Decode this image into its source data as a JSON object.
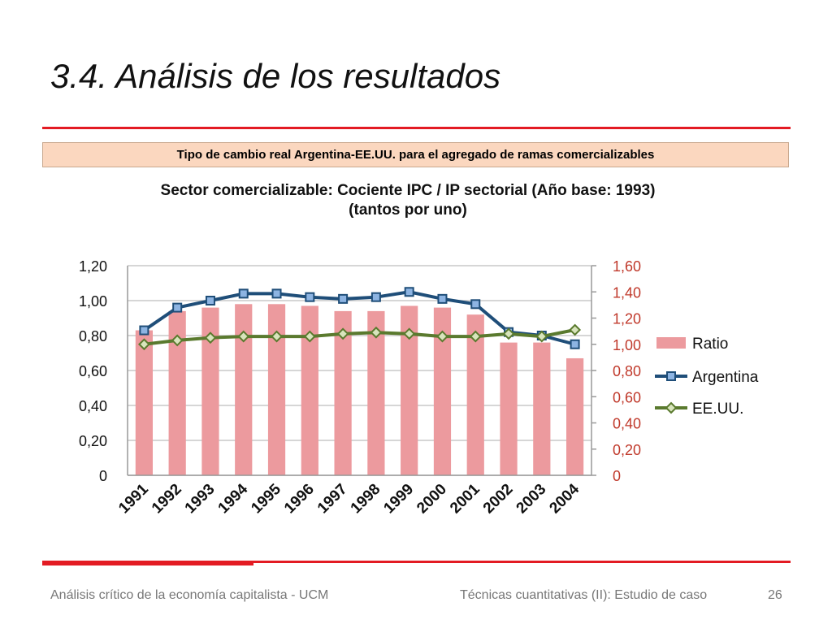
{
  "slide": {
    "title": "3.4.  Análisis de los resultados",
    "caption": "Tipo de cambio real Argentina-EE.UU. para el agregado de ramas comercializables",
    "footer_left": "Análisis crítico de la economía capitalista - UCM",
    "footer_center": "Técnicas cuantitativas (II): Estudio de caso",
    "page_number": "26",
    "accent_color": "#e31b23"
  },
  "chart_data": {
    "type": "bar",
    "title": "Sector comercializable: Cociente IPC / IP sectorial (Año base: 1993)",
    "subtitle": "(tantos por uno)",
    "categories": [
      "1991",
      "1992",
      "1993",
      "1994",
      "1995",
      "1996",
      "1997",
      "1998",
      "1999",
      "2000",
      "2001",
      "2002",
      "2003",
      "2004"
    ],
    "y_left": {
      "min": 0,
      "max": 1.2,
      "step": 0.2,
      "ticks": [
        "0",
        "0,20",
        "0,40",
        "0,60",
        "0,80",
        "1,00",
        "1,20"
      ]
    },
    "y_right": {
      "min": 0,
      "max": 1.6,
      "step": 0.2,
      "ticks": [
        "0",
        "0,20",
        "0,40",
        "0,60",
        "0,80",
        "1,00",
        "1,20",
        "1,40",
        "1,60"
      ],
      "color": "#c0392b"
    },
    "grid": true,
    "legend_position": "right",
    "series": [
      {
        "name": "Ratio",
        "kind": "bar",
        "axis": "left",
        "color": "#ec9a9e",
        "values": [
          0.83,
          0.94,
          0.96,
          0.98,
          0.98,
          0.97,
          0.94,
          0.94,
          0.97,
          0.96,
          0.92,
          0.76,
          0.76,
          0.67
        ]
      },
      {
        "name": "Argentina",
        "kind": "line",
        "axis": "left",
        "color": "#1f4e79",
        "marker": "square",
        "values": [
          0.83,
          0.96,
          1.0,
          1.04,
          1.04,
          1.02,
          1.01,
          1.02,
          1.05,
          1.01,
          0.98,
          0.82,
          0.8,
          0.75
        ]
      },
      {
        "name": "EE.UU.",
        "kind": "line",
        "axis": "right",
        "color": "#5a7a2e",
        "marker": "diamond",
        "values": [
          1.0,
          1.03,
          1.05,
          1.06,
          1.06,
          1.06,
          1.08,
          1.09,
          1.08,
          1.06,
          1.06,
          1.08,
          1.06,
          1.11
        ]
      }
    ]
  }
}
